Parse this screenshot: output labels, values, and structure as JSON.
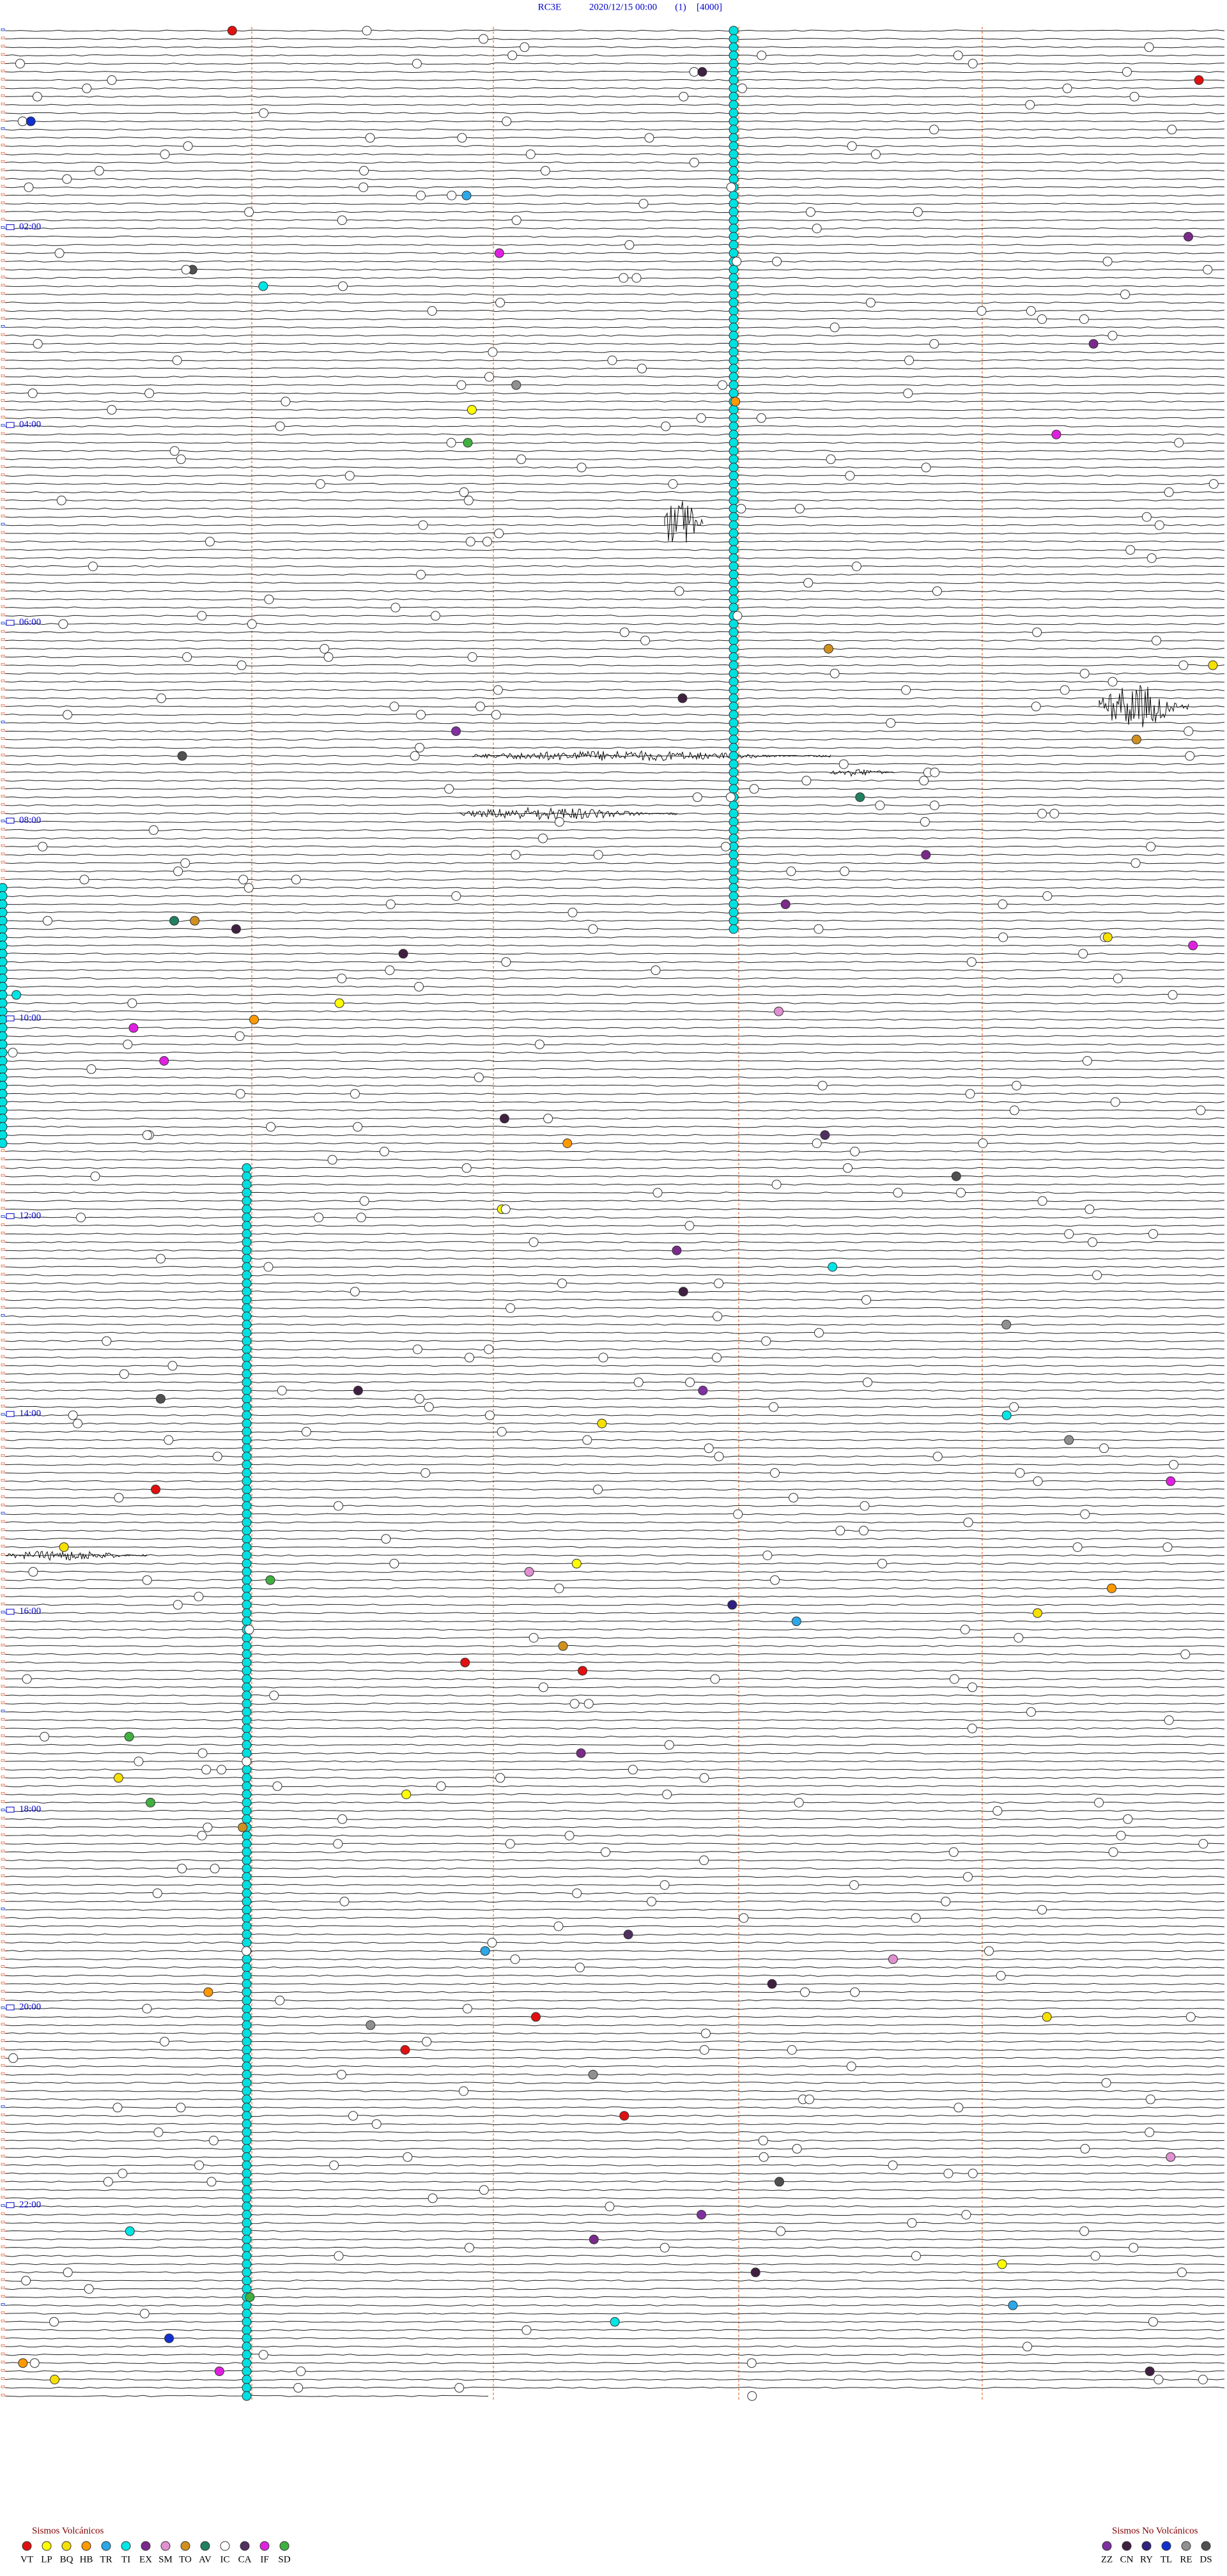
{
  "header": {
    "station": "RC3E",
    "start": "2020/12/15 00:00",
    "channel": "(1)",
    "scale": "[4000]"
  },
  "time_labels": [
    "02:00",
    "04:00",
    "06:00",
    "08:00",
    "10:00",
    "12:00",
    "14:00",
    "16:00",
    "18:00",
    "20:00",
    "22:00"
  ],
  "legend": {
    "volcanic": {
      "title": "Sismos Volcánicos",
      "items": [
        {
          "code": "VT",
          "color": "#e01010"
        },
        {
          "code": "LP",
          "color": "#ffff00"
        },
        {
          "code": "BQ",
          "color": "#f5e000"
        },
        {
          "code": "HB",
          "color": "#ff9900"
        },
        {
          "code": "TR",
          "color": "#2aa8e8"
        },
        {
          "code": "TI",
          "color": "#00e5e5"
        },
        {
          "code": "EX",
          "color": "#7a2a8a"
        },
        {
          "code": "SM",
          "color": "#e090d0"
        },
        {
          "code": "TO",
          "color": "#d09020"
        },
        {
          "code": "AV",
          "color": "#208060"
        },
        {
          "code": "IC",
          "color": "#ffffff"
        },
        {
          "code": "CA",
          "color": "#503060"
        },
        {
          "code": "IF",
          "color": "#e020e0"
        },
        {
          "code": "SD",
          "color": "#40b040"
        }
      ]
    },
    "non_volcanic": {
      "title": "Sismos No Volcánicos",
      "items": [
        {
          "code": "ZZ",
          "color": "#8030a0"
        },
        {
          "code": "CN",
          "color": "#402040"
        },
        {
          "code": "RY",
          "color": "#302080"
        },
        {
          "code": "TL",
          "color": "#1030d0"
        },
        {
          "code": "RE",
          "color": "#909090"
        },
        {
          "code": "DS",
          "color": "#505050"
        }
      ]
    }
  }
}
